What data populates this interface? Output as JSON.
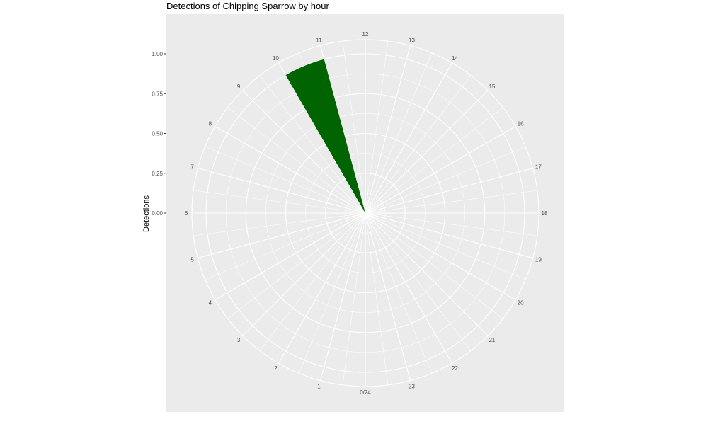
{
  "chart_data": {
    "type": "bar",
    "coordinate_system": "polar",
    "title": "Detections of Chipping Sparrow by hour",
    "ylabel": "Detections",
    "xlabel": "",
    "categories": [
      "0/24",
      "1",
      "2",
      "3",
      "4",
      "5",
      "6",
      "7",
      "8",
      "9",
      "10",
      "11",
      "12",
      "13",
      "14",
      "15",
      "16",
      "17",
      "18",
      "19",
      "20",
      "21",
      "22",
      "23"
    ],
    "values": [
      0,
      0,
      0,
      0,
      0,
      0,
      0,
      0,
      0,
      0,
      0,
      1.0,
      0,
      0,
      0,
      0,
      0,
      0,
      0,
      0,
      0,
      0,
      0,
      0
    ],
    "hours": [
      11
    ],
    "hour_values": [
      1.0
    ],
    "ylim": [
      0,
      1
    ],
    "yticks": [
      "0.00",
      "0.25",
      "0.50",
      "0.75",
      "1.00"
    ],
    "ytick_values": [
      0,
      0.25,
      0.5,
      0.75,
      1.0
    ],
    "bar_color": "#006400",
    "panel_color": "#EBEBEB",
    "grid_color": "#FFFFFF",
    "grid": true,
    "legend": "none"
  }
}
